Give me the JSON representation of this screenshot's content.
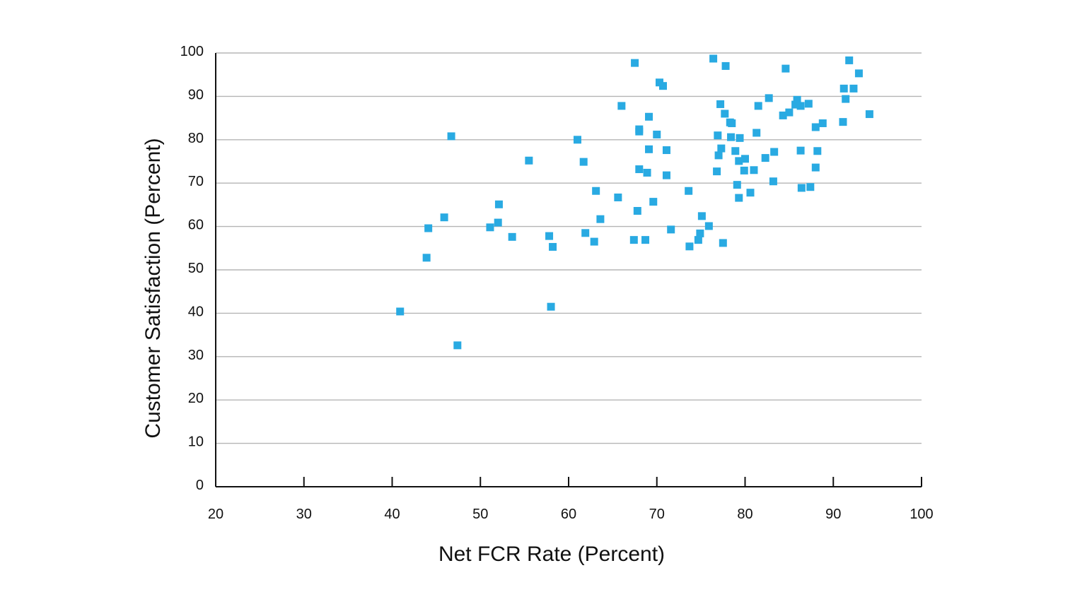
{
  "chart_data": {
    "type": "scatter",
    "title": "",
    "xlabel": "Net FCR Rate (Percent)",
    "ylabel": "Customer Satisfaction (Percent)",
    "xlim": [
      20,
      100
    ],
    "ylim": [
      0,
      100
    ],
    "x_ticks": [
      "20",
      "30",
      "40",
      "50",
      "60",
      "70",
      "80",
      "90",
      "100"
    ],
    "y_ticks": [
      "0",
      "10",
      "20",
      "30",
      "40",
      "50",
      "60",
      "70",
      "80",
      "90",
      "100"
    ],
    "grid": "horizontal",
    "legend": "none",
    "marker_color": "#29aae2",
    "series": [
      {
        "points": [
          [
            40.9,
            40.4
          ],
          [
            43.9,
            52.8
          ],
          [
            44.1,
            59.6
          ],
          [
            45.9,
            62.1
          ],
          [
            46.7,
            80.8
          ],
          [
            47.4,
            32.6
          ],
          [
            51.1,
            59.8
          ],
          [
            52.0,
            60.9
          ],
          [
            52.1,
            65.1
          ],
          [
            53.6,
            57.6
          ],
          [
            55.5,
            75.2
          ],
          [
            57.8,
            57.8
          ],
          [
            58.0,
            41.5
          ],
          [
            58.2,
            55.3
          ],
          [
            61.0,
            80.0
          ],
          [
            61.7,
            74.9
          ],
          [
            61.9,
            58.5
          ],
          [
            62.9,
            56.5
          ],
          [
            63.1,
            68.2
          ],
          [
            63.6,
            61.7
          ],
          [
            65.6,
            66.7
          ],
          [
            66.0,
            87.8
          ],
          [
            67.4,
            56.9
          ],
          [
            67.5,
            97.7
          ],
          [
            67.8,
            63.6
          ],
          [
            68.0,
            81.9
          ],
          [
            68.0,
            82.4
          ],
          [
            68.0,
            73.2
          ],
          [
            68.7,
            56.9
          ],
          [
            68.9,
            72.4
          ],
          [
            69.1,
            85.3
          ],
          [
            69.1,
            77.8
          ],
          [
            69.6,
            65.7
          ],
          [
            70.0,
            81.2
          ],
          [
            70.3,
            93.2
          ],
          [
            70.7,
            92.4
          ],
          [
            71.1,
            71.8
          ],
          [
            71.1,
            77.6
          ],
          [
            71.6,
            59.3
          ],
          [
            73.6,
            68.2
          ],
          [
            73.7,
            55.4
          ],
          [
            74.7,
            56.9
          ],
          [
            74.9,
            58.4
          ],
          [
            75.1,
            62.4
          ],
          [
            75.9,
            60.1
          ],
          [
            76.4,
            98.7
          ],
          [
            76.8,
            72.7
          ],
          [
            76.9,
            81.0
          ],
          [
            77.0,
            76.4
          ],
          [
            77.2,
            88.2
          ],
          [
            77.3,
            78.0
          ],
          [
            77.5,
            56.2
          ],
          [
            77.7,
            86.0
          ],
          [
            77.8,
            97.0
          ],
          [
            78.3,
            84.0
          ],
          [
            78.4,
            80.6
          ],
          [
            78.5,
            83.8
          ],
          [
            78.9,
            77.4
          ],
          [
            79.1,
            69.6
          ],
          [
            79.3,
            66.6
          ],
          [
            79.3,
            75.1
          ],
          [
            79.4,
            80.4
          ],
          [
            79.9,
            72.9
          ],
          [
            80.0,
            75.6
          ],
          [
            80.6,
            67.8
          ],
          [
            81.0,
            73.0
          ],
          [
            81.3,
            81.6
          ],
          [
            81.5,
            87.8
          ],
          [
            82.3,
            75.8
          ],
          [
            82.7,
            89.6
          ],
          [
            83.2,
            70.4
          ],
          [
            83.3,
            77.2
          ],
          [
            84.3,
            85.6
          ],
          [
            84.6,
            96.4
          ],
          [
            85.0,
            86.3
          ],
          [
            85.7,
            88.1
          ],
          [
            85.9,
            89.2
          ],
          [
            86.3,
            77.5
          ],
          [
            86.3,
            87.8
          ],
          [
            86.4,
            68.9
          ],
          [
            87.2,
            88.3
          ],
          [
            87.4,
            69.1
          ],
          [
            88.0,
            73.6
          ],
          [
            88.0,
            82.9
          ],
          [
            88.2,
            77.4
          ],
          [
            88.8,
            83.8
          ],
          [
            91.1,
            84.1
          ],
          [
            91.2,
            91.8
          ],
          [
            91.4,
            89.4
          ],
          [
            91.8,
            98.3
          ],
          [
            92.3,
            91.8
          ],
          [
            92.9,
            95.3
          ],
          [
            94.1,
            85.9
          ]
        ]
      }
    ]
  }
}
